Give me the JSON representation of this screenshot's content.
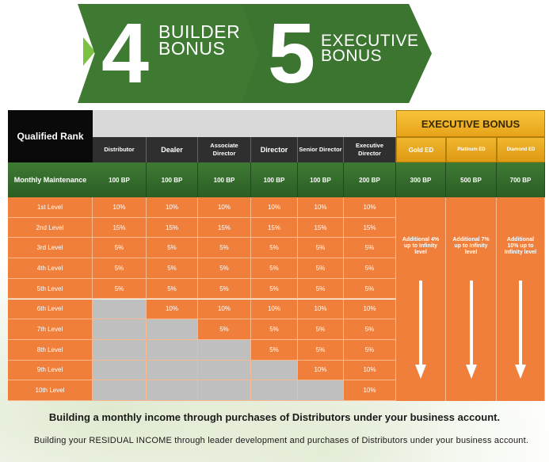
{
  "banner": {
    "left_number": "4",
    "left_title_line1": "BUILDER",
    "left_title_line2": "BONUS",
    "right_number": "5",
    "right_title_line1": "EXECUTIVE",
    "right_title_line2": "BONUS"
  },
  "table": {
    "qualified_rank": "Qualified Rank",
    "executive_bonus": "EXECUTIVE BONUS",
    "ranks": [
      "Distributor",
      "Dealer",
      "Associate Director",
      "Director",
      "Senior Director",
      "Executive Director"
    ],
    "exec_ranks": [
      "Gold ED",
      "Platinum ED",
      "Diamond ED"
    ],
    "maintenance_label": "Monthly Maintenance",
    "maintenance": [
      "100 BP",
      "100 BP",
      "100 BP",
      "100 BP",
      "100 BP",
      "200 BP"
    ],
    "exec_maintenance": [
      "300 BP",
      "500 BP",
      "700 BP"
    ],
    "levels": [
      {
        "label": "1st Level",
        "values": [
          "10%",
          "10%",
          "10%",
          "10%",
          "10%",
          "10%"
        ]
      },
      {
        "label": "2nd Level",
        "values": [
          "15%",
          "15%",
          "15%",
          "15%",
          "15%",
          "15%"
        ]
      },
      {
        "label": "3rd Level",
        "values": [
          "5%",
          "5%",
          "5%",
          "5%",
          "5%",
          "5%"
        ]
      },
      {
        "label": "4th Level",
        "values": [
          "5%",
          "5%",
          "5%",
          "5%",
          "5%",
          "5%"
        ]
      },
      {
        "label": "5th Level",
        "values": [
          "5%",
          "5%",
          "5%",
          "5%",
          "5%",
          "5%"
        ]
      },
      {
        "label": "6th Level",
        "values": [
          "",
          "10%",
          "10%",
          "10%",
          "10%",
          "10%"
        ]
      },
      {
        "label": "7th Level",
        "values": [
          "",
          "",
          "5%",
          "5%",
          "5%",
          "5%"
        ]
      },
      {
        "label": "8th Level",
        "values": [
          "",
          "",
          "",
          "5%",
          "5%",
          "5%"
        ]
      },
      {
        "label": "9th Level",
        "values": [
          "",
          "",
          "",
          "",
          "10%",
          "10%"
        ]
      },
      {
        "label": "10th Level",
        "values": [
          "",
          "",
          "",
          "",
          "",
          "10%"
        ]
      }
    ],
    "exec_notes": [
      "Additional 4% up to Infinity level",
      "Additional 7% up to Infinity level",
      "Additional 10% up to Infinity level"
    ]
  },
  "footer": {
    "line1": "Building a monthly income through purchases of Distributors under your business account.",
    "line2": "Building your RESIDUAL INCOME through leader development and purchases of Distributors under your business account."
  },
  "colors": {
    "banner_green": "#3f7a33",
    "orange": "#ef7f3a",
    "gold": "#f2b630",
    "gray_empty": "#bfbfbf"
  }
}
